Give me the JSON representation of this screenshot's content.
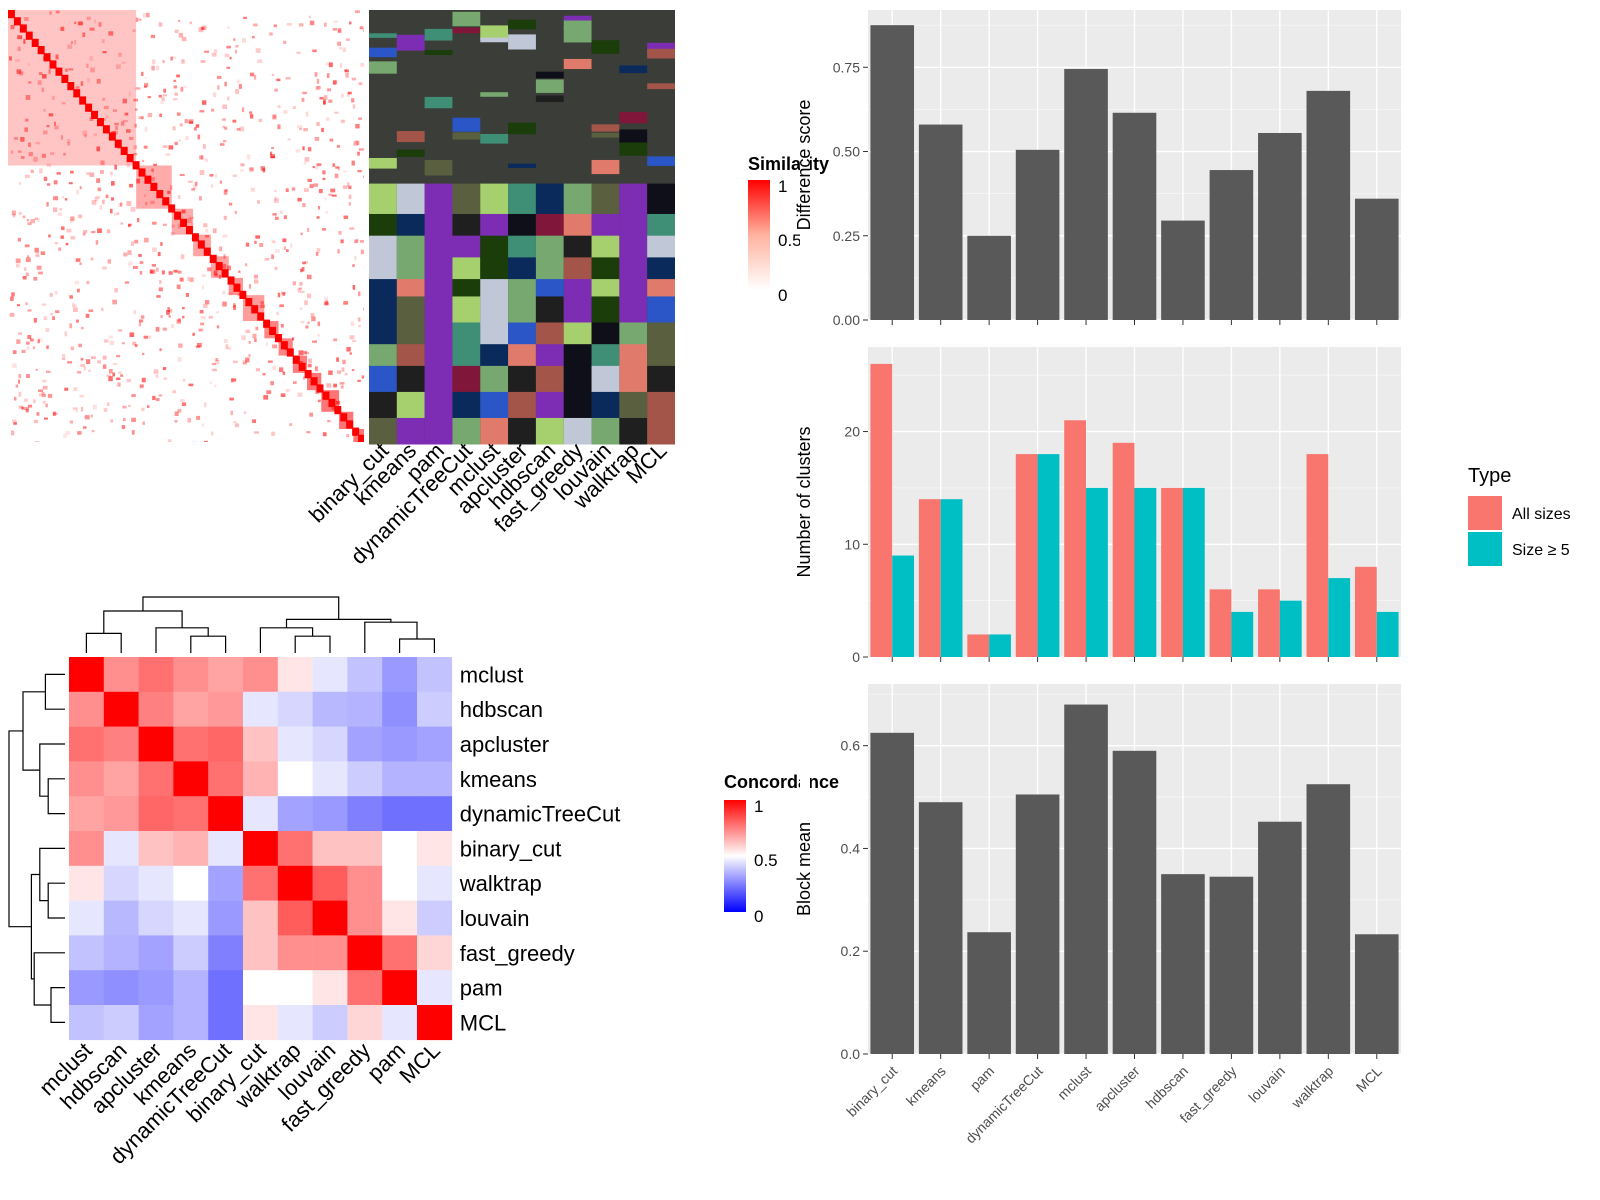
{
  "methods": [
    "binary_cut",
    "kmeans",
    "pam",
    "dynamicTreeCut",
    "mclust",
    "apcluster",
    "hdbscan",
    "fast_greedy",
    "louvain",
    "walktrap",
    "MCL"
  ],
  "similarity_legend": {
    "title": "Similarity",
    "ticks": [
      "1",
      "0.5",
      "0"
    ]
  },
  "concordance_legend": {
    "title": "Concordance",
    "ticks": [
      "1",
      "0.5",
      "0"
    ]
  },
  "colors": {
    "panel_bg": "#ebebeb",
    "bar_fill": "#595959",
    "all_sizes": "#f8766d",
    "size_ge_5": "#00bfc4",
    "heat_high": "#ff0000",
    "heat_mid": "#ffffff",
    "heat_low": "#0000ff"
  },
  "chart_data": [
    {
      "type": "heatmap",
      "name": "concordance",
      "order": [
        "mclust",
        "hdbscan",
        "apcluster",
        "kmeans",
        "dynamicTreeCut",
        "binary_cut",
        "walktrap",
        "louvain",
        "fast_greedy",
        "pam",
        "MCL"
      ],
      "values": [
        [
          1.0,
          0.72,
          0.78,
          0.72,
          0.68,
          0.72,
          0.55,
          0.45,
          0.38,
          0.3,
          0.38
        ],
        [
          0.72,
          1.0,
          0.75,
          0.68,
          0.7,
          0.45,
          0.42,
          0.36,
          0.35,
          0.28,
          0.4
        ],
        [
          0.78,
          0.75,
          1.0,
          0.78,
          0.8,
          0.62,
          0.45,
          0.42,
          0.32,
          0.3,
          0.32
        ],
        [
          0.72,
          0.68,
          0.78,
          1.0,
          0.78,
          0.65,
          0.5,
          0.45,
          0.4,
          0.35,
          0.35
        ],
        [
          0.68,
          0.7,
          0.8,
          0.78,
          1.0,
          0.45,
          0.32,
          0.3,
          0.25,
          0.22,
          0.22
        ],
        [
          0.72,
          0.45,
          0.62,
          0.65,
          0.45,
          1.0,
          0.78,
          0.62,
          0.62,
          0.5,
          0.55
        ],
        [
          0.55,
          0.42,
          0.45,
          0.5,
          0.32,
          0.78,
          1.0,
          0.82,
          0.72,
          0.5,
          0.45
        ],
        [
          0.45,
          0.36,
          0.42,
          0.45,
          0.3,
          0.62,
          0.82,
          1.0,
          0.72,
          0.55,
          0.4
        ],
        [
          0.38,
          0.35,
          0.32,
          0.4,
          0.25,
          0.62,
          0.72,
          0.72,
          1.0,
          0.78,
          0.58
        ],
        [
          0.3,
          0.28,
          0.3,
          0.35,
          0.22,
          0.5,
          0.5,
          0.55,
          0.78,
          1.0,
          0.45
        ],
        [
          0.38,
          0.4,
          0.32,
          0.35,
          0.22,
          0.55,
          0.45,
          0.4,
          0.58,
          0.45,
          1.0
        ]
      ],
      "scale_range": [
        0,
        1
      ]
    },
    {
      "type": "bar",
      "name": "difference-score",
      "categories": [
        "binary_cut",
        "kmeans",
        "pam",
        "dynamicTreeCut",
        "mclust",
        "apcluster",
        "hdbscan",
        "fast_greedy",
        "louvain",
        "walktrap",
        "MCL"
      ],
      "values": [
        0.875,
        0.58,
        0.25,
        0.505,
        0.745,
        0.615,
        0.295,
        0.445,
        0.555,
        0.68,
        0.36
      ],
      "ylabel": "Difference score",
      "ylim": [
        0,
        0.92
      ],
      "yticks": [
        "0.00",
        "0.25",
        "0.50",
        "0.75"
      ],
      "ytick_values": [
        0,
        0.25,
        0.5,
        0.75
      ]
    },
    {
      "type": "bar",
      "name": "number-of-clusters",
      "categories": [
        "binary_cut",
        "kmeans",
        "pam",
        "dynamicTreeCut",
        "mclust",
        "apcluster",
        "hdbscan",
        "fast_greedy",
        "louvain",
        "walktrap",
        "MCL"
      ],
      "series": [
        {
          "name": "All sizes",
          "values": [
            26,
            14,
            2,
            18,
            21,
            19,
            15,
            6,
            6,
            18,
            8
          ]
        },
        {
          "name": "Size ≥ 5",
          "values": [
            9,
            14,
            2,
            18,
            15,
            15,
            15,
            4,
            5,
            7,
            4
          ]
        }
      ],
      "ylabel": "Number of clusters",
      "ylim": [
        0,
        27.5
      ],
      "yticks": [
        "0",
        "10",
        "20"
      ],
      "ytick_values": [
        0,
        10,
        20
      ],
      "legend": {
        "title": "Type",
        "placement": "right"
      }
    },
    {
      "type": "bar",
      "name": "block-mean",
      "categories": [
        "binary_cut",
        "kmeans",
        "pam",
        "dynamicTreeCut",
        "mclust",
        "apcluster",
        "hdbscan",
        "fast_greedy",
        "louvain",
        "walktrap",
        "MCL"
      ],
      "values": [
        0.625,
        0.49,
        0.237,
        0.505,
        0.68,
        0.59,
        0.35,
        0.345,
        0.452,
        0.525,
        0.233
      ],
      "ylabel": "Block mean",
      "ylim": [
        0,
        0.72
      ],
      "yticks": [
        "0.0",
        "0.2",
        "0.4",
        "0.6"
      ],
      "ytick_values": [
        0,
        0.2,
        0.4,
        0.6
      ]
    }
  ]
}
